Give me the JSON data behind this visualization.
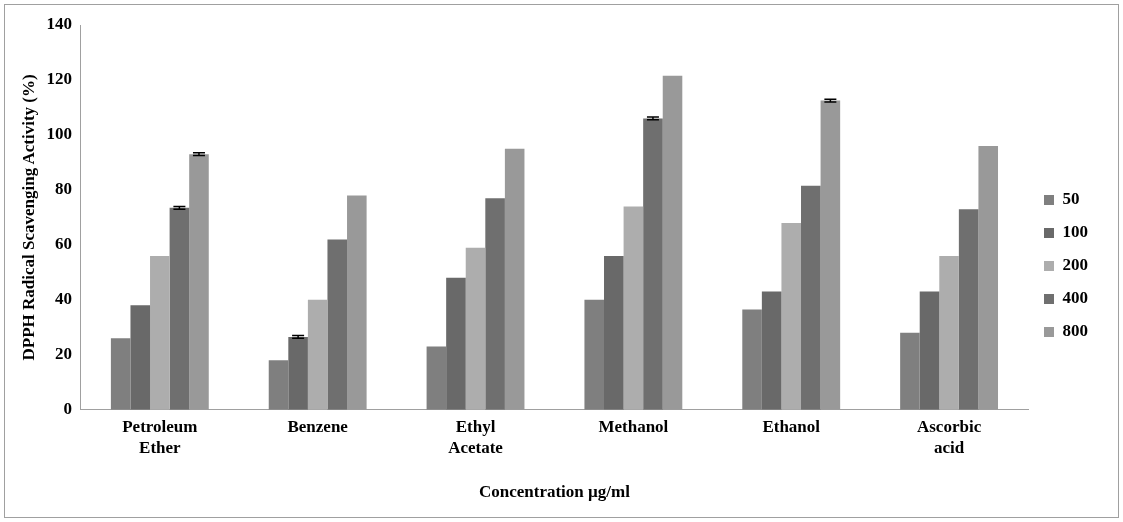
{
  "chart_data": {
    "type": "bar",
    "xlabel": "Concentration µg/ml",
    "ylabel": "DPPH Radical Scavenging Activity (%)",
    "categories": [
      "Petroleum Ether",
      "Benzene",
      "Ethyl Acetate",
      "Methanol",
      "Ethanol",
      "Ascorbic acid"
    ],
    "series": [
      {
        "name": "50",
        "color": "#7f7f7f",
        "values": [
          26,
          18,
          23,
          40,
          36.5,
          28
        ]
      },
      {
        "name": "100",
        "color": "#696969",
        "values": [
          38,
          26.5,
          48,
          56,
          43,
          43
        ],
        "errors": [
          null,
          0.5,
          null,
          null,
          null,
          null
        ]
      },
      {
        "name": "200",
        "color": "#adadad",
        "values": [
          56,
          40,
          59,
          74,
          68,
          56
        ]
      },
      {
        "name": "400",
        "color": "#6f6f6f",
        "values": [
          73.5,
          62,
          77,
          106,
          81.5,
          73
        ],
        "errors": [
          0.5,
          null,
          null,
          0.5,
          null,
          null
        ]
      },
      {
        "name": "800",
        "color": "#999999",
        "values": [
          93,
          78,
          95,
          121.5,
          112.5,
          96
        ],
        "errors": [
          0.5,
          null,
          null,
          null,
          0.5,
          null
        ]
      }
    ],
    "ylim": [
      0,
      140
    ],
    "yticks": [
      0,
      20,
      40,
      60,
      80,
      100,
      120,
      140
    ],
    "grid": false,
    "legend": "right"
  }
}
